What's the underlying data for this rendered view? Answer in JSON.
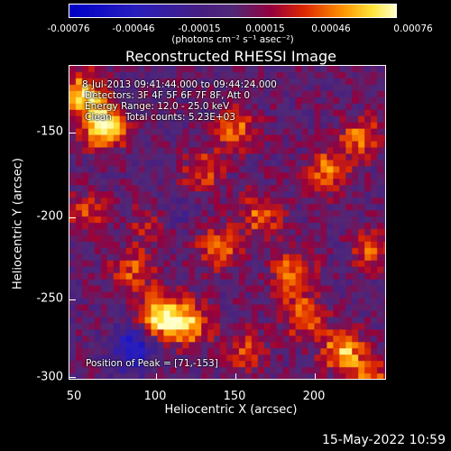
{
  "colorbar": {
    "tick_labels": [
      "-0.00076",
      "-0.00046",
      "-0.00015",
      "0.00015",
      "0.00046",
      "0.00076"
    ],
    "units": "(photons cm⁻² s⁻¹ asec⁻²)"
  },
  "plot": {
    "title": "Reconstructed RHESSI Image",
    "xlabel": "Heliocentric X (arcsec)",
    "ylabel": "Heliocentric Y (arcsec)",
    "xticks": [
      "50",
      "100",
      "150",
      "200"
    ],
    "yticks": [
      "-150",
      "-200",
      "-250",
      "-300"
    ]
  },
  "annotations": {
    "time": "8-Jul-2013 09:41:44.000 to 09:44:24.000",
    "detectors": "Detectors: 3F 4F 5F 6F 7F 8F, Att 0",
    "energy": "Energy Range: 12.0 - 25.0 keV",
    "clean": "Clean",
    "counts": "Total counts: 5.23E+03",
    "peak": "Position of Peak = [71,-153]"
  },
  "footer_date": "15-May-2022 10:59",
  "chart_data": {
    "type": "heatmap",
    "title": "Reconstructed RHESSI Image",
    "xlabel": "Heliocentric X (arcsec)",
    "ylabel": "Heliocentric Y (arcsec)",
    "xlim": [
      50,
      240
    ],
    "ylim": [
      -302,
      -118
    ],
    "color_range": [
      -0.00076,
      0.00076
    ],
    "colorbar_ticks": [
      -0.00076,
      -0.00046,
      -0.00015,
      0.00015,
      0.00046,
      0.00076
    ],
    "peak_position": [
      71,
      -153
    ],
    "bright_sources": [
      {
        "x": 71,
        "y": -153,
        "value": 0.00076
      },
      {
        "x": 58,
        "y": -135,
        "value": 0.0006
      },
      {
        "x": 105,
        "y": -265,
        "value": 0.0007
      },
      {
        "x": 122,
        "y": -270,
        "value": 0.0005
      },
      {
        "x": 215,
        "y": -285,
        "value": 0.00055
      },
      {
        "x": 230,
        "y": -305,
        "value": 0.0005
      },
      {
        "x": 205,
        "y": -180,
        "value": 0.00045
      },
      {
        "x": 165,
        "y": -205,
        "value": 0.0004
      },
      {
        "x": 150,
        "y": -155,
        "value": 0.0004
      },
      {
        "x": 185,
        "y": -240,
        "value": 0.00045
      },
      {
        "x": 190,
        "y": -265,
        "value": 0.0004
      },
      {
        "x": 140,
        "y": -225,
        "value": 0.0004
      },
      {
        "x": 88,
        "y": -238,
        "value": 0.00035
      },
      {
        "x": 130,
        "y": -180,
        "value": 0.00035
      },
      {
        "x": 232,
        "y": -225,
        "value": 0.00035
      },
      {
        "x": 225,
        "y": -160,
        "value": 0.0004
      },
      {
        "x": 100,
        "y": -210,
        "value": 0.0003
      },
      {
        "x": 155,
        "y": -285,
        "value": 0.0003
      },
      {
        "x": 60,
        "y": -205,
        "value": 0.0003
      }
    ],
    "dark_sources": [
      {
        "x": 88,
        "y": -285,
        "value": -0.0006
      },
      {
        "x": 110,
        "y": -205,
        "value": -0.0002
      }
    ],
    "colors": {
      "low": "#0000ff",
      "zero": "#400070",
      "high": "#ffff80"
    }
  }
}
